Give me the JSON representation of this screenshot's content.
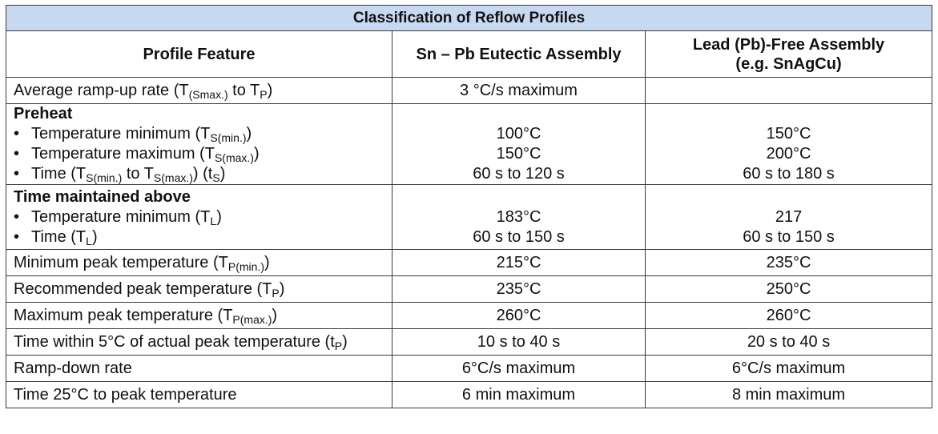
{
  "title": "Classification of Reflow Profiles",
  "headers": [
    "Profile Feature",
    "Sn – Pb Eutectic Assembly",
    "Lead (Pb)-Free Assembly",
    "(e.g. SnAgCu)"
  ],
  "rows": {
    "ramp_up": {
      "feature": "Average ramp-up rate (T",
      "sub1": "(Smax.)",
      "mid": " to T",
      "sub2": "P",
      "end": ")",
      "snpb": "3 °C/s maximum",
      "pbfree": ""
    },
    "preheat": {
      "heading": "Preheat",
      "bullet": "•",
      "tmin_label": "Temperature minimum (T",
      "tmin_sub": "S(min.)",
      "tmin_end": ")",
      "tmax_label": "Temperature maximum (T",
      "tmax_sub": "S(max.)",
      "tmax_end": ")",
      "time_label": "Time (T",
      "time_sub1": "S(min.)",
      "time_mid": " to T",
      "time_sub2": "S(max.)",
      "time_mid2": ") (t",
      "time_sub3": "S",
      "time_end": ")",
      "snpb_tmin": "100°C",
      "snpb_tmax": "150°C",
      "snpb_time": "60 s to 120 s",
      "pbfree_tmin": "150°C",
      "pbfree_tmax": "200°C",
      "pbfree_time": "60 s to 180 s"
    },
    "above": {
      "heading": "Time maintained above",
      "tmin_label": "Temperature minimum (T",
      "tmin_sub": "L",
      "tmin_end": ")",
      "time_label": "Time (T",
      "time_sub": "L",
      "time_end": ")",
      "snpb_tmin": "183°C",
      "snpb_time": "60 s to 150 s",
      "pbfree_tmin": "217",
      "pbfree_time": "60 s to 150 s"
    },
    "min_peak": {
      "feature": "Minimum peak temperature (T",
      "sub": "P(min.)",
      "end": ")",
      "snpb": "215°C",
      "pbfree": "235°C"
    },
    "rec_peak": {
      "feature": "Recommended peak temperature (T",
      "sub": "P",
      "end": ")",
      "snpb": "235°C",
      "pbfree": "250°C"
    },
    "max_peak": {
      "feature": "Maximum peak temperature (T",
      "sub": "P(max.)",
      "end": ")",
      "snpb": "260°C",
      "pbfree": "260°C"
    },
    "within": {
      "feature": "Time within 5°C of actual peak temperature (t",
      "sub": "P",
      "end": ")",
      "snpb": "10 s to 40 s",
      "pbfree": "20 s to 40 s"
    },
    "ramp_down": {
      "feature": "Ramp-down rate",
      "snpb": "6°C/s maximum",
      "pbfree": "6°C/s maximum"
    },
    "time25": {
      "feature": "Time 25°C to peak temperature",
      "snpb": "6 min maximum",
      "pbfree": "8 min maximum"
    }
  }
}
